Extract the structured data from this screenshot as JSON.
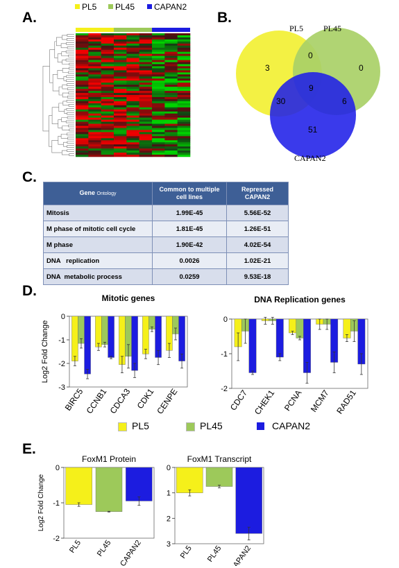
{
  "panels": {
    "a": {
      "label": "A."
    },
    "b": {
      "label": "B."
    },
    "c": {
      "label": "C."
    },
    "d": {
      "label": "D."
    },
    "e": {
      "label": "E."
    }
  },
  "top_legend": [
    {
      "name": "PL5",
      "color": "#f5f01a"
    },
    {
      "name": "PL45",
      "color": "#9dc95a"
    },
    {
      "name": "CAPAN2",
      "color": "#1c1ce0"
    }
  ],
  "venn": {
    "labels": {
      "pl5": "PL5",
      "pl45": "PL45",
      "capan2": "CAPAN2"
    },
    "counts": {
      "pl5_only": "3",
      "pl45_only": "0",
      "pl5_pl45": "0",
      "all_three": "9",
      "pl5_capan2": "30",
      "pl45_capan2": "6",
      "capan2_only": "51"
    }
  },
  "go_table": {
    "header": {
      "col1_main": "Gene",
      "col1_sub": "Ontology",
      "col2": "Common to multiple cell lines",
      "col3": "Repressed CAPAN2"
    },
    "rows": [
      {
        "term": "Mitosis",
        "common": "1.99E-45",
        "repressed": "5.56E-52"
      },
      {
        "term": "M phase of mitotic cell cycle",
        "common": "1.81E-45",
        "repressed": "1.26E-51"
      },
      {
        "term": "M phase",
        "common": "1.90E-42",
        "repressed": "4.02E-54"
      },
      {
        "term": "DNA   replication",
        "common": "0.0026",
        "repressed": "1.02E-21"
      },
      {
        "term": "DNA  metabolic process",
        "common": "0.0259",
        "repressed": "9.53E-18"
      }
    ]
  },
  "chart_data": [
    {
      "type": "bar",
      "title": "Mitotic genes",
      "ylabel": "Log2 Fold Change",
      "ylim": [
        -3,
        0
      ],
      "yticks": [
        "0",
        "-1",
        "-2",
        "-3"
      ],
      "categories": [
        "BIRC5",
        "CCNB1",
        "CDCA3",
        "CDK1",
        "CENPE"
      ],
      "series": [
        {
          "name": "PL5",
          "color": "#f5f01a",
          "values": [
            -1.9,
            -1.3,
            -2.05,
            -1.6,
            -1.45
          ],
          "errors": [
            0.2,
            0.15,
            0.35,
            0.2,
            0.3
          ]
        },
        {
          "name": "PL45",
          "color": "#9dc95a",
          "values": [
            -1.15,
            -1.2,
            -1.7,
            -0.55,
            -0.75
          ],
          "errors": [
            0.2,
            0.1,
            0.5,
            0.1,
            0.25
          ]
        },
        {
          "name": "CAPAN2",
          "color": "#1c1ce0",
          "values": [
            -2.45,
            -1.75,
            -2.3,
            -1.75,
            -1.9
          ],
          "errors": [
            0.2,
            0.05,
            0.3,
            0.3,
            0.3
          ]
        }
      ]
    },
    {
      "type": "bar",
      "title": "DNA  Replication genes",
      "ylabel": "",
      "ylim": [
        -2,
        0
      ],
      "yticks": [
        "0",
        "-1",
        "-2"
      ],
      "categories": [
        "CDC7",
        "CHEK1",
        "PCNA",
        "MCM7",
        "RAD51"
      ],
      "series": [
        {
          "name": "PL5",
          "color": "#f5f01a",
          "values": [
            -0.8,
            -0.05,
            -0.4,
            -0.15,
            -0.55
          ],
          "errors": [
            0.4,
            0.1,
            0.05,
            0.15,
            0.1
          ]
        },
        {
          "name": "PL45",
          "color": "#9dc95a",
          "values": [
            -0.35,
            -0.05,
            -0.55,
            -0.15,
            -0.35
          ],
          "errors": [
            0.35,
            0.1,
            0.05,
            0.15,
            0.3
          ]
        },
        {
          "name": "CAPAN2",
          "color": "#1c1ce0",
          "values": [
            -1.55,
            -1.1,
            -1.55,
            -1.25,
            -1.3
          ],
          "errors": [
            0.05,
            0.1,
            0.3,
            0.3,
            0.3
          ]
        }
      ]
    },
    {
      "type": "bar",
      "title": "FoxM1 Protein",
      "ylabel": "Log2 Fold Change",
      "ylim": [
        -2,
        0
      ],
      "yticks": [
        "0",
        "-1",
        "-2"
      ],
      "categories": [
        "PL5",
        "PL45",
        "CAPAN2"
      ],
      "colors": [
        "#f5f01a",
        "#9dc95a",
        "#1c1ce0"
      ],
      "values": [
        -1.05,
        -1.25,
        -0.95
      ],
      "errors": [
        0.05,
        0.01,
        0.12
      ]
    },
    {
      "type": "bar",
      "title": "FoxM1 Transcript",
      "ylabel": "",
      "ylim": [
        -3,
        0
      ],
      "yticks": [
        "0",
        "-1",
        "-2",
        "-3"
      ],
      "categories": [
        "PL5",
        "PL45",
        "CAPAN2"
      ],
      "colors": [
        "#f5f01a",
        "#9dc95a",
        "#1c1ce0"
      ],
      "values": [
        -1.0,
        -0.75,
        -2.6
      ],
      "errors": [
        0.12,
        0.05,
        0.25
      ]
    }
  ],
  "heatmap": {
    "colors": {
      "red": "#e41a1c",
      "green": "#1ec21e",
      "black": "#000000"
    },
    "column_groups": [
      "PL5",
      "PL45",
      "CAPAN2"
    ]
  },
  "bottom_legend": [
    {
      "name": "PL5",
      "color": "#f5f01a"
    },
    {
      "name": "PL45",
      "color": "#9dc95a"
    },
    {
      "name": "CAPAN2",
      "color": "#1c1ce0"
    }
  ]
}
